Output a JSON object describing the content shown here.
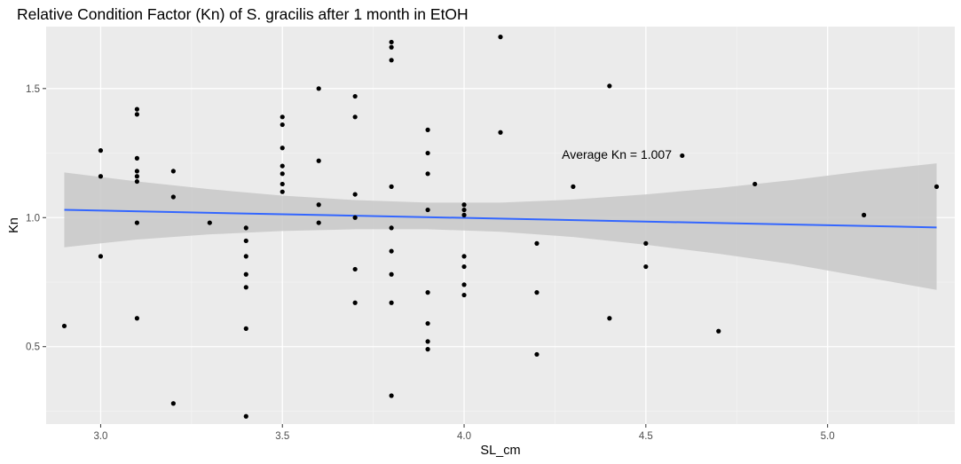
{
  "chart_data": {
    "type": "scatter",
    "title": "Relative Condition Factor (Kn) of S. gracilis after 1 month in EtOH",
    "xlabel": "SL_cm",
    "ylabel": "Kn",
    "xlim": [
      2.85,
      5.35
    ],
    "ylim": [
      0.2,
      1.74
    ],
    "x_ticks": [
      3.0,
      3.5,
      4.0,
      4.5,
      5.0
    ],
    "x_tick_labels": [
      "3.0",
      "3.5",
      "4.0",
      "4.5",
      "5.0"
    ],
    "y_ticks": [
      0.5,
      1.0,
      1.5
    ],
    "y_tick_labels": [
      "0.5",
      "1.0",
      "1.5"
    ],
    "grid": true,
    "background": "#ebebeb",
    "point_color": "#000000",
    "points": [
      {
        "x": 2.9,
        "y": 0.58
      },
      {
        "x": 3.0,
        "y": 1.26
      },
      {
        "x": 3.0,
        "y": 1.16
      },
      {
        "x": 3.0,
        "y": 0.85
      },
      {
        "x": 3.1,
        "y": 1.42
      },
      {
        "x": 3.1,
        "y": 1.4
      },
      {
        "x": 3.1,
        "y": 1.23
      },
      {
        "x": 3.1,
        "y": 1.18
      },
      {
        "x": 3.1,
        "y": 1.16
      },
      {
        "x": 3.1,
        "y": 1.14
      },
      {
        "x": 3.1,
        "y": 0.98
      },
      {
        "x": 3.1,
        "y": 0.61
      },
      {
        "x": 3.2,
        "y": 1.18
      },
      {
        "x": 3.2,
        "y": 1.08
      },
      {
        "x": 3.2,
        "y": 0.28
      },
      {
        "x": 3.3,
        "y": 0.98
      },
      {
        "x": 3.4,
        "y": 0.96
      },
      {
        "x": 3.4,
        "y": 0.91
      },
      {
        "x": 3.4,
        "y": 0.85
      },
      {
        "x": 3.4,
        "y": 0.78
      },
      {
        "x": 3.4,
        "y": 0.73
      },
      {
        "x": 3.4,
        "y": 0.57
      },
      {
        "x": 3.4,
        "y": 0.23
      },
      {
        "x": 3.5,
        "y": 1.39
      },
      {
        "x": 3.5,
        "y": 1.36
      },
      {
        "x": 3.5,
        "y": 1.27
      },
      {
        "x": 3.5,
        "y": 1.2
      },
      {
        "x": 3.5,
        "y": 1.17
      },
      {
        "x": 3.5,
        "y": 1.13
      },
      {
        "x": 3.5,
        "y": 1.1
      },
      {
        "x": 3.6,
        "y": 1.5
      },
      {
        "x": 3.6,
        "y": 1.22
      },
      {
        "x": 3.6,
        "y": 1.05
      },
      {
        "x": 3.6,
        "y": 0.98
      },
      {
        "x": 3.7,
        "y": 1.47
      },
      {
        "x": 3.7,
        "y": 1.39
      },
      {
        "x": 3.7,
        "y": 1.09
      },
      {
        "x": 3.7,
        "y": 1.0
      },
      {
        "x": 3.7,
        "y": 0.8
      },
      {
        "x": 3.7,
        "y": 0.67
      },
      {
        "x": 3.8,
        "y": 1.68
      },
      {
        "x": 3.8,
        "y": 1.66
      },
      {
        "x": 3.8,
        "y": 1.61
      },
      {
        "x": 3.8,
        "y": 1.12
      },
      {
        "x": 3.8,
        "y": 0.96
      },
      {
        "x": 3.8,
        "y": 0.87
      },
      {
        "x": 3.8,
        "y": 0.78
      },
      {
        "x": 3.8,
        "y": 0.67
      },
      {
        "x": 3.8,
        "y": 0.31
      },
      {
        "x": 3.9,
        "y": 1.34
      },
      {
        "x": 3.9,
        "y": 1.25
      },
      {
        "x": 3.9,
        "y": 1.17
      },
      {
        "x": 3.9,
        "y": 1.03
      },
      {
        "x": 3.9,
        "y": 0.71
      },
      {
        "x": 3.9,
        "y": 0.59
      },
      {
        "x": 3.9,
        "y": 0.52
      },
      {
        "x": 3.9,
        "y": 0.49
      },
      {
        "x": 4.0,
        "y": 1.05
      },
      {
        "x": 4.0,
        "y": 1.03
      },
      {
        "x": 4.0,
        "y": 1.01
      },
      {
        "x": 4.0,
        "y": 0.85
      },
      {
        "x": 4.0,
        "y": 0.81
      },
      {
        "x": 4.0,
        "y": 0.74
      },
      {
        "x": 4.0,
        "y": 0.7
      },
      {
        "x": 4.1,
        "y": 1.7
      },
      {
        "x": 4.1,
        "y": 1.33
      },
      {
        "x": 4.2,
        "y": 0.9
      },
      {
        "x": 4.2,
        "y": 0.71
      },
      {
        "x": 4.2,
        "y": 0.47
      },
      {
        "x": 4.3,
        "y": 1.12
      },
      {
        "x": 4.4,
        "y": 1.51
      },
      {
        "x": 4.4,
        "y": 0.61
      },
      {
        "x": 4.5,
        "y": 0.9
      },
      {
        "x": 4.5,
        "y": 0.81
      },
      {
        "x": 4.6,
        "y": 1.24
      },
      {
        "x": 4.7,
        "y": 0.56
      },
      {
        "x": 4.8,
        "y": 1.13
      },
      {
        "x": 5.1,
        "y": 1.01
      },
      {
        "x": 5.3,
        "y": 1.12
      }
    ],
    "trend": {
      "type": "linear",
      "color": "#3366ff",
      "x": [
        2.9,
        5.3
      ],
      "y": [
        1.03,
        0.962
      ],
      "band_color": "#c8c8c8",
      "band_x": [
        2.9,
        3.1,
        3.3,
        3.5,
        3.7,
        3.9,
        4.1,
        4.3,
        4.5,
        4.7,
        4.9,
        5.1,
        5.3
      ],
      "band_lower": [
        0.885,
        0.915,
        0.935,
        0.948,
        0.955,
        0.955,
        0.945,
        0.925,
        0.895,
        0.86,
        0.82,
        0.77,
        0.72
      ],
      "band_upper": [
        1.175,
        1.14,
        1.11,
        1.085,
        1.068,
        1.058,
        1.058,
        1.07,
        1.09,
        1.115,
        1.145,
        1.18,
        1.21
      ]
    },
    "annotation": {
      "text": "Average Kn = 1.007",
      "x": 4.42,
      "y": 1.245
    }
  }
}
